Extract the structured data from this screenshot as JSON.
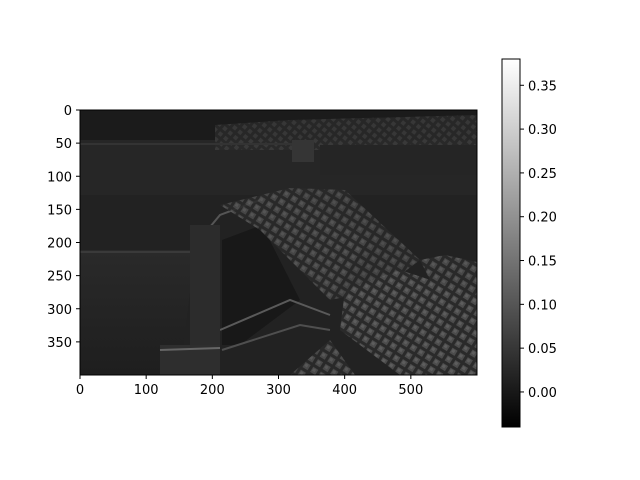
{
  "chart_data": {
    "type": "heatmap",
    "subject": "grayscale image of an empty indoor arena with tiered seating",
    "colormap": "gray",
    "image_shape": [
      400,
      600
    ],
    "x_ticks": [
      0,
      100,
      200,
      300,
      400,
      500
    ],
    "y_ticks": [
      0,
      50,
      100,
      150,
      200,
      250,
      300,
      350
    ],
    "colorbar": {
      "vmin": -0.04,
      "vmax": 0.38,
      "ticks": [
        0.0,
        0.05,
        0.1,
        0.15,
        0.2,
        0.25,
        0.3,
        0.35
      ],
      "tick_labels": [
        "0.00",
        "0.05",
        "0.10",
        "0.15",
        "0.20",
        "0.25",
        "0.30",
        "0.35"
      ]
    },
    "title": "",
    "xlabel": "",
    "ylabel": ""
  }
}
